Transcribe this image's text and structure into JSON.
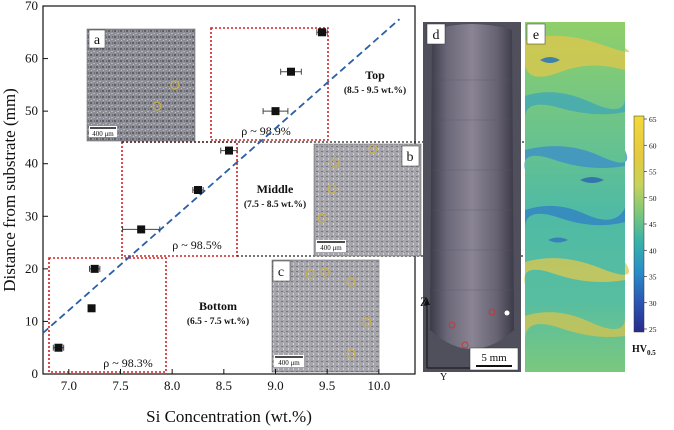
{
  "chart_data": {
    "type": "scatter",
    "xlabel": "Si Concentration (wt.%)",
    "ylabel": "Distance from substrate (mm)",
    "xlim": [
      6.75,
      10.35
    ],
    "ylim": [
      0,
      70
    ],
    "xticks": [
      "7.0",
      "7.5",
      "8.0",
      "8.5",
      "9.0",
      "9.5",
      "10.0"
    ],
    "yticks": [
      "0",
      "10",
      "20",
      "30",
      "40",
      "50",
      "60",
      "70"
    ],
    "series": [
      {
        "name": "Si concentration",
        "points": [
          {
            "x": 6.9,
            "y": 5,
            "xerr": 0.05
          },
          {
            "x": 7.22,
            "y": 12.5,
            "xerr": 0
          },
          {
            "x": 7.25,
            "y": 20,
            "xerr": 0.05
          },
          {
            "x": 7.7,
            "y": 27.5,
            "xerr": 0.18
          },
          {
            "x": 8.25,
            "y": 35,
            "xerr": 0.05
          },
          {
            "x": 8.55,
            "y": 42.5,
            "xerr": 0.08
          },
          {
            "x": 9.0,
            "y": 50,
            "xerr": 0.12
          },
          {
            "x": 9.15,
            "y": 57.5,
            "xerr": 0.1
          },
          {
            "x": 9.45,
            "y": 65,
            "xerr": 0.05
          }
        ]
      }
    ],
    "fit_line": {
      "x": [
        6.75,
        10.2
      ],
      "y": [
        7.8,
        67.5
      ],
      "style": "dashed"
    },
    "zones": [
      {
        "id": "top",
        "title": "Top",
        "range": "(8.5 - 9.5 wt.%)",
        "density": "ρ ~ 98.9%"
      },
      {
        "id": "middle",
        "title": "Middle",
        "range": "(7.5 - 8.5 wt.%)",
        "density": "ρ ~ 98.5%"
      },
      {
        "id": "bottom",
        "title": "Bottom",
        "range": "(6.5 - 7.5 wt.%)",
        "density": "ρ ~ 98.3%"
      }
    ],
    "insets": [
      {
        "label": "a",
        "scale_bar": "400 μm"
      },
      {
        "label": "b",
        "scale_bar": "400 μm"
      },
      {
        "label": "c",
        "scale_bar": "400 μm"
      }
    ],
    "macrograph": {
      "label": "d",
      "scale_bar": "5 mm",
      "axis_z": "Z",
      "axis_y": "Y"
    },
    "hardness_map": {
      "label": "e",
      "colorbar_ticks": [
        "65",
        "60",
        "55",
        "50",
        "45",
        "40",
        "35",
        "30",
        "25"
      ],
      "colorbar_label": "HV",
      "colorbar_sub": "0.5"
    }
  },
  "colors": {
    "zone_border": "#d42020",
    "fit_line": "#2a5fa8",
    "marker": "#111111",
    "dotted_link": "#222222"
  }
}
